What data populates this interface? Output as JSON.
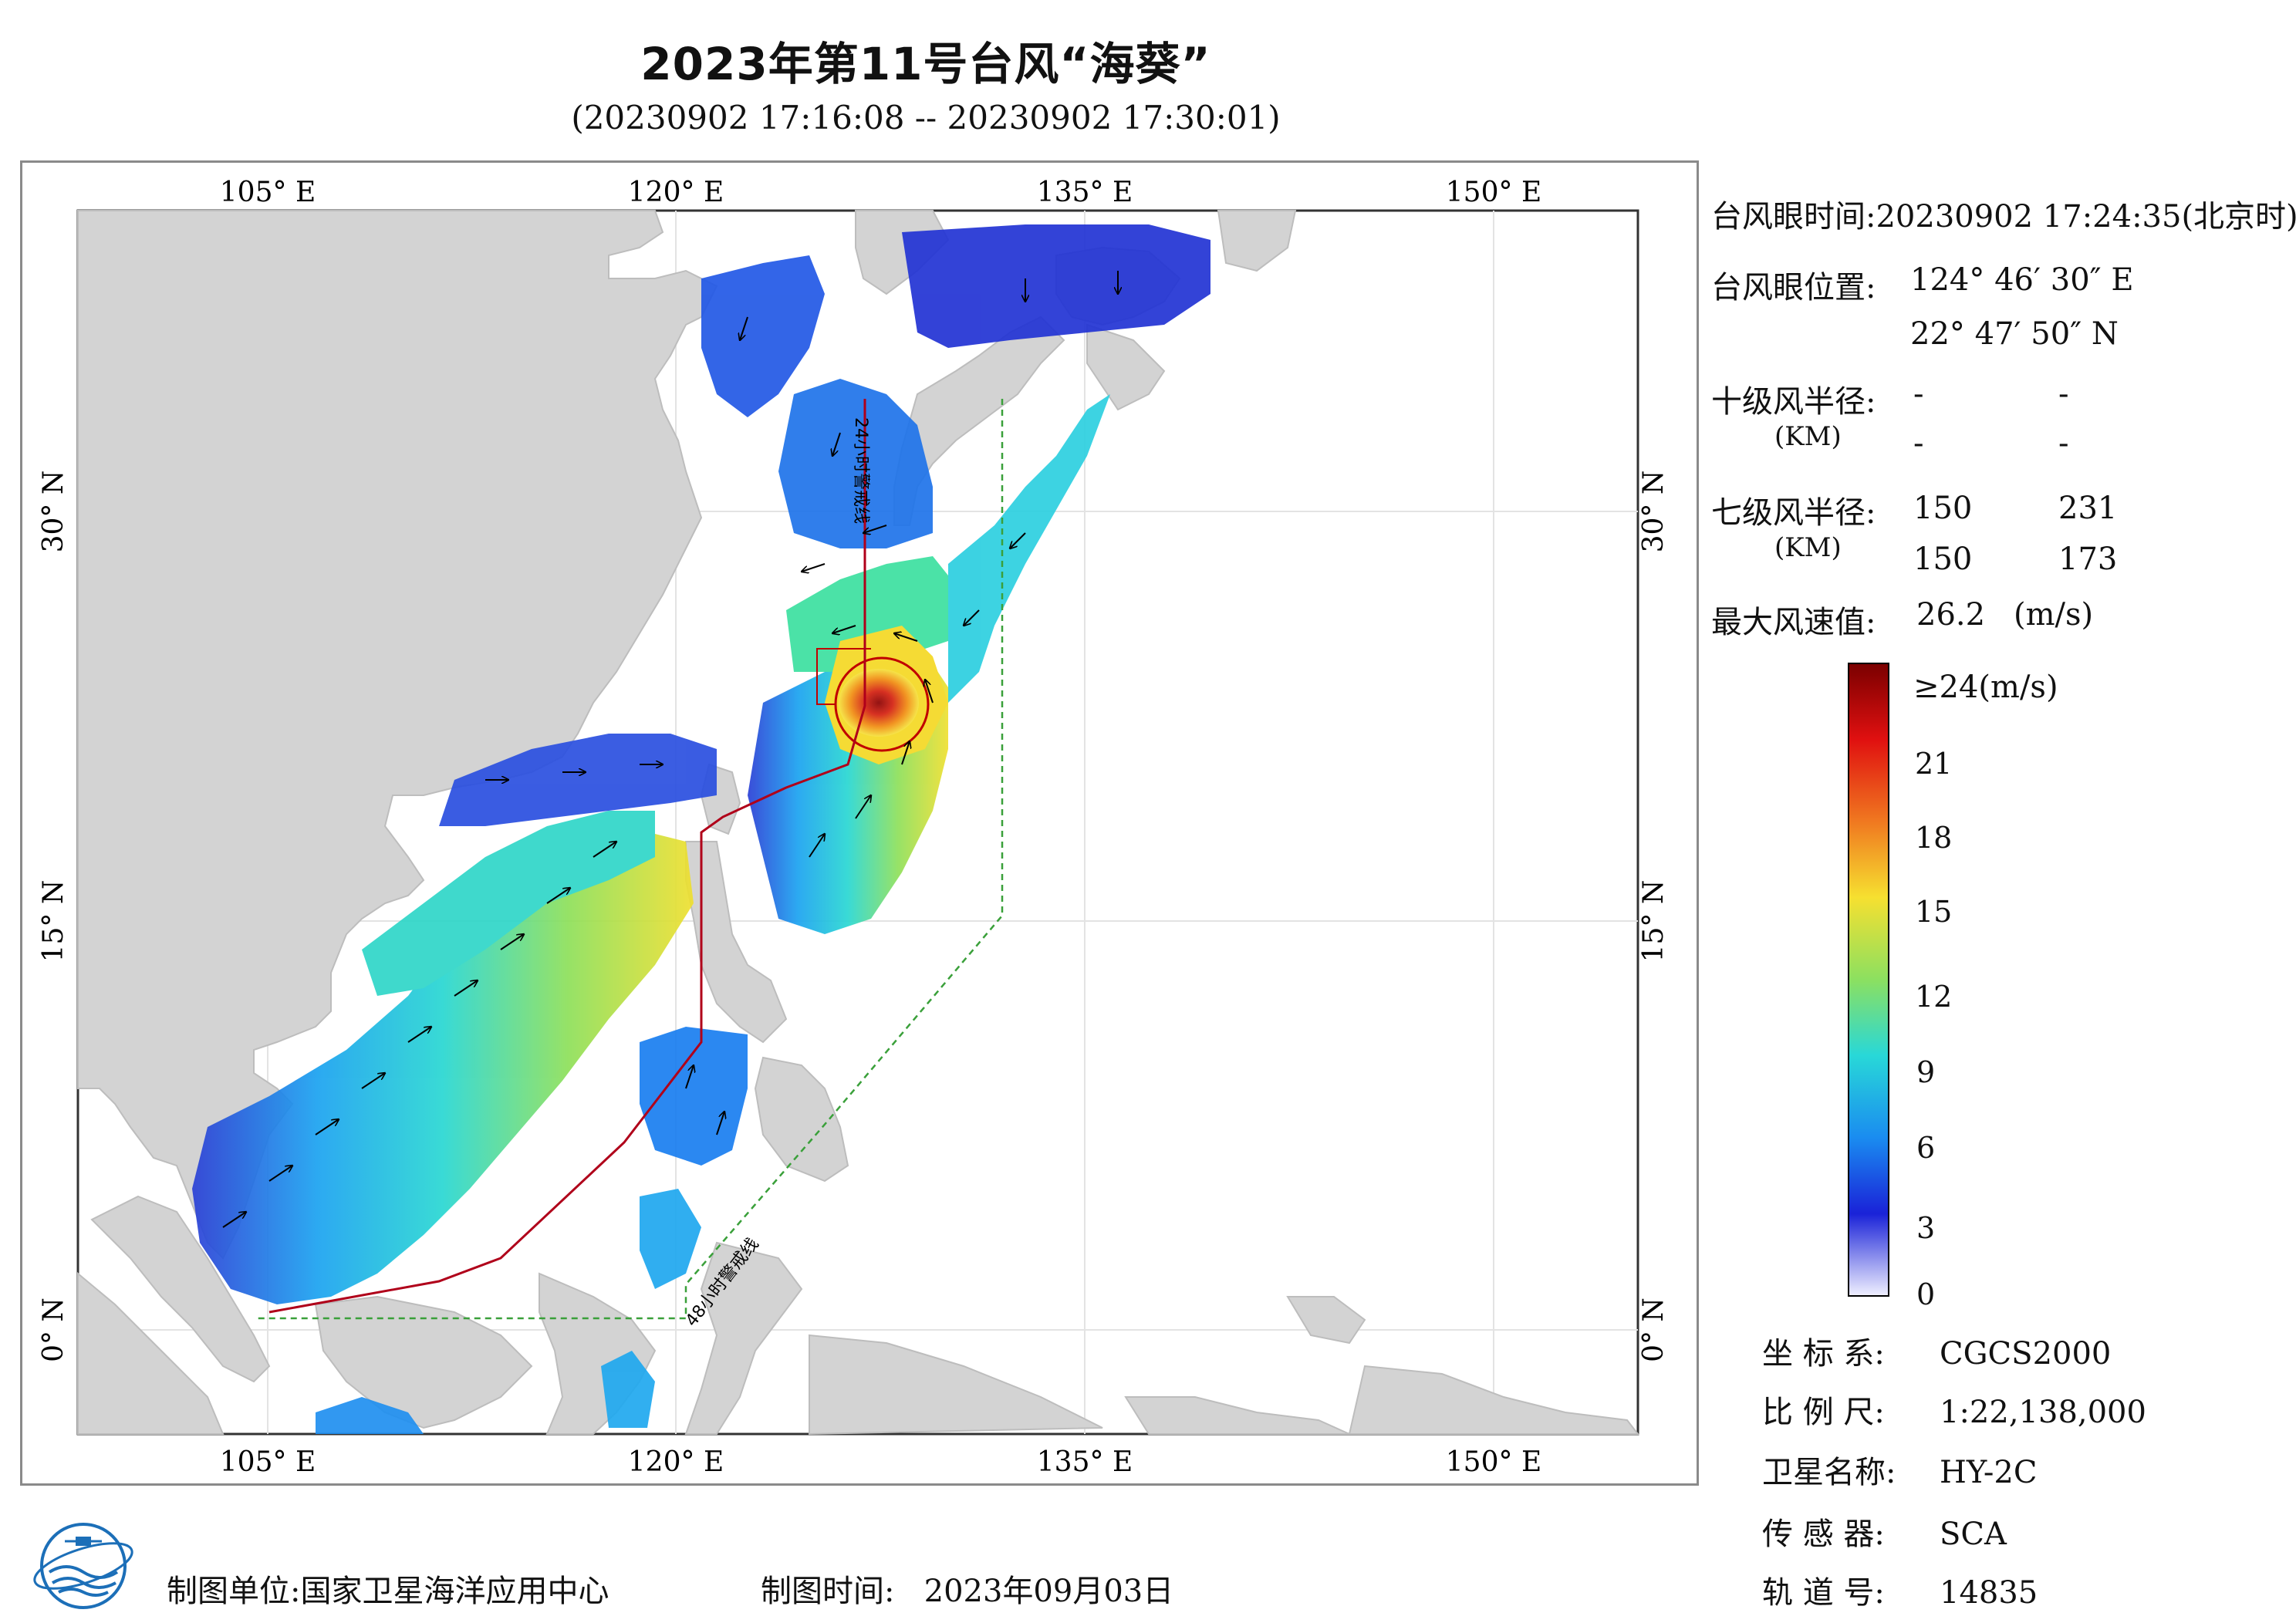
{
  "header": {
    "title": "2023年第11号台风“海葵”",
    "subtitle": "(20230902 17:16:08 -- 20230902 17:30:01)"
  },
  "map": {
    "lon_ticks": [
      "105° E",
      "120° E",
      "135° E",
      "150° E"
    ],
    "lat_ticks": [
      "30° N",
      "15° N",
      "0° N"
    ],
    "line_labels": {
      "warning_24h": "24小时警戒线",
      "warning_48h": "48小时警戒线"
    },
    "colors": {
      "land": "#d3d3d3",
      "sea": "#ffffff",
      "warning_24h": "#b0001a",
      "warning_48h": "#3aa03a",
      "typhoon_circle": "#c00000"
    }
  },
  "info": {
    "eye_time_label": "台风眼时间:",
    "eye_time_value": "20230902 17:24:35(北京时)",
    "eye_pos_label": "台风眼位置:",
    "eye_lon": "124° 46′ 30″ E",
    "eye_lat": "22° 47′ 50″ N",
    "r10_label": "十级风半径:",
    "r10_unit": "(KM)",
    "r10_values": [
      "-",
      "-",
      "-",
      "-"
    ],
    "r7_label": "七级风半径:",
    "r7_unit": "(KM)",
    "r7_values": [
      "150",
      "231",
      "150",
      "173"
    ],
    "vmax_label": "最大风速值:",
    "vmax_value": "26.2",
    "vmax_unit": "(m/s)"
  },
  "colorbar": {
    "top_label": "≥24(m/s)",
    "ticks": [
      "21",
      "18",
      "15",
      "12",
      "9",
      "6",
      "3",
      "0"
    ],
    "min": 0,
    "max": 24
  },
  "meta": {
    "coord_label": "坐 标 系:",
    "coord_value": "CGCS2000",
    "scale_label": "比 例 尺:",
    "scale_value": "1:22,138,000",
    "satellite_label": "卫星名称:",
    "satellite_value": "HY-2C",
    "sensor_label": "传 感 器:",
    "sensor_value": "SCA",
    "orbit_label": "轨 道 号:",
    "orbit_value": "14835"
  },
  "footer": {
    "unit_label": "制图单位:",
    "unit_value": "国家卫星海洋应用中心",
    "time_label": "制图时间:",
    "time_value": "2023年09月03日"
  }
}
